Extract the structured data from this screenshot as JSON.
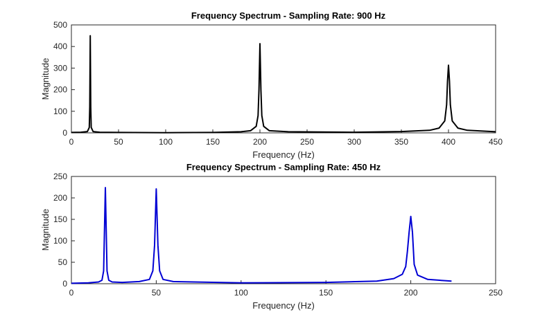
{
  "chart_data": [
    {
      "type": "line",
      "title": "Frequency Spectrum - Sampling Rate: 900 Hz",
      "xlabel": "Frequency (Hz)",
      "ylabel": "Magnitude",
      "xlim": [
        0,
        450
      ],
      "ylim": [
        0,
        500
      ],
      "xticks": [
        0,
        50,
        100,
        150,
        200,
        250,
        300,
        350,
        400,
        450
      ],
      "yticks": [
        0,
        100,
        200,
        300,
        400,
        500
      ],
      "grid": false,
      "series": [
        {
          "name": "Spectrum 900 Hz",
          "color": "#000000",
          "x": [
            0,
            10,
            17,
            19,
            19.5,
            20,
            20.5,
            21,
            23,
            30,
            50,
            100,
            150,
            180,
            190,
            196,
            198,
            199,
            200,
            201,
            202,
            204,
            210,
            230,
            300,
            350,
            380,
            390,
            396,
            398,
            399,
            400,
            401,
            402,
            404,
            410,
            420,
            450
          ],
          "y": [
            2,
            3,
            6,
            25,
            120,
            450,
            120,
            25,
            6,
            3,
            2,
            1,
            2,
            5,
            10,
            30,
            80,
            200,
            413,
            200,
            80,
            30,
            10,
            5,
            3,
            6,
            12,
            22,
            55,
            130,
            240,
            313,
            240,
            130,
            55,
            22,
            12,
            5
          ]
        }
      ]
    },
    {
      "type": "line",
      "title": "Frequency Spectrum - Sampling Rate: 450 Hz",
      "xlabel": "Frequency (Hz)",
      "ylabel": "Magnitude",
      "xlim": [
        0,
        250
      ],
      "ylim": [
        0,
        250
      ],
      "xticks": [
        0,
        50,
        100,
        150,
        200,
        250
      ],
      "yticks": [
        0,
        50,
        100,
        150,
        200,
        250
      ],
      "grid": false,
      "series": [
        {
          "name": "Spectrum 450 Hz",
          "color": "#0000d4",
          "x": [
            0,
            10,
            16,
            18,
            19,
            20,
            21,
            22,
            24,
            30,
            40,
            46,
            48,
            49,
            50,
            51,
            52,
            54,
            60,
            100,
            150,
            180,
            190,
            195,
            197,
            198,
            199,
            200,
            201,
            202,
            204,
            210,
            224
          ],
          "y": [
            1,
            2,
            4,
            8,
            30,
            224,
            30,
            8,
            4,
            3,
            5,
            10,
            30,
            90,
            221,
            90,
            30,
            10,
            5,
            2,
            3,
            6,
            12,
            22,
            40,
            75,
            120,
            157,
            120,
            45,
            20,
            10,
            6
          ]
        }
      ]
    }
  ]
}
